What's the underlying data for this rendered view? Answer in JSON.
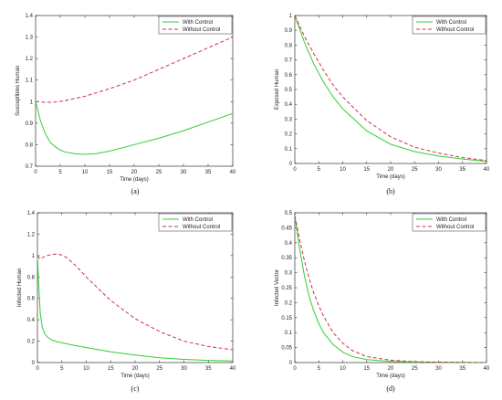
{
  "chart_data": [
    {
      "type": "line",
      "panel_label": "(a)",
      "xlabel": "Time (days)",
      "ylabel": "Susceptibles Human",
      "xlim": [
        0,
        40
      ],
      "ylim": [
        0.7,
        1.4
      ],
      "xticks": [
        "0",
        "5",
        "10",
        "15",
        "20",
        "25",
        "30",
        "35",
        "40"
      ],
      "yticks": [
        "0.7",
        "0.8",
        "0.9",
        "1",
        "1.1",
        "1.2",
        "1.3",
        "1.4"
      ],
      "legend_position": "top-right",
      "series": [
        {
          "name": "With Control",
          "color": "#33cc33",
          "dash": "solid",
          "x": [
            0,
            1,
            2,
            3,
            4,
            5,
            6,
            8,
            10,
            12,
            15,
            20,
            25,
            30,
            35,
            40
          ],
          "y": [
            1.0,
            0.91,
            0.85,
            0.81,
            0.79,
            0.775,
            0.766,
            0.758,
            0.755,
            0.758,
            0.77,
            0.8,
            0.83,
            0.865,
            0.905,
            0.945
          ]
        },
        {
          "name": "Without Control",
          "color": "#cc3344",
          "dash": "dashed",
          "x": [
            0,
            2,
            4,
            6,
            8,
            10,
            15,
            20,
            25,
            30,
            35,
            40
          ],
          "y": [
            1.0,
            0.997,
            0.998,
            1.005,
            1.015,
            1.025,
            1.06,
            1.1,
            1.15,
            1.2,
            1.25,
            1.3
          ]
        }
      ]
    },
    {
      "type": "line",
      "panel_label": "(b)",
      "xlabel": "Time (days)",
      "ylabel": "Exposed Human",
      "xlim": [
        0,
        40
      ],
      "ylim": [
        0,
        1
      ],
      "xticks": [
        "0",
        "5",
        "10",
        "15",
        "20",
        "25",
        "30",
        "35",
        "40"
      ],
      "yticks": [
        "0",
        "0.1",
        "0.2",
        "0.3",
        "0.4",
        "0.5",
        "0.6",
        "0.7",
        "0.8",
        "0.9",
        "1"
      ],
      "legend_position": "top-right",
      "series": [
        {
          "name": "With Control",
          "color": "#33cc33",
          "dash": "solid",
          "x": [
            0,
            2,
            4,
            6,
            8,
            10,
            15,
            20,
            25,
            30,
            35,
            40
          ],
          "y": [
            1.0,
            0.82,
            0.67,
            0.55,
            0.45,
            0.37,
            0.22,
            0.13,
            0.08,
            0.05,
            0.03,
            0.015
          ]
        },
        {
          "name": "Without Control",
          "color": "#cc3344",
          "dash": "dashed",
          "x": [
            0,
            2,
            4,
            6,
            8,
            10,
            15,
            20,
            25,
            30,
            35,
            40
          ],
          "y": [
            1.0,
            0.86,
            0.74,
            0.63,
            0.53,
            0.45,
            0.29,
            0.18,
            0.11,
            0.07,
            0.04,
            0.02
          ]
        }
      ]
    },
    {
      "type": "line",
      "panel_label": "(c)",
      "xlabel": "Time (days)",
      "ylabel": "Infected Human",
      "xlim": [
        0,
        40
      ],
      "ylim": [
        0,
        1.4
      ],
      "xticks": [
        "0",
        "5",
        "10",
        "15",
        "20",
        "25",
        "30",
        "35",
        "40"
      ],
      "yticks": [
        "0",
        "0.2",
        "0.4",
        "0.6",
        "0.8",
        "1",
        "1.2",
        "1.4"
      ],
      "legend_position": "top-right",
      "series": [
        {
          "name": "With Control",
          "color": "#33cc33",
          "dash": "solid",
          "x": [
            0,
            0.3,
            0.6,
            1,
            1.5,
            2,
            3,
            4,
            5,
            7,
            10,
            15,
            20,
            25,
            30,
            35,
            40
          ],
          "y": [
            1.0,
            0.7,
            0.45,
            0.33,
            0.27,
            0.24,
            0.21,
            0.195,
            0.185,
            0.165,
            0.14,
            0.1,
            0.07,
            0.045,
            0.03,
            0.02,
            0.015
          ]
        },
        {
          "name": "Without Control",
          "color": "#cc3344",
          "dash": "dashed",
          "x": [
            0,
            0.5,
            1,
            2,
            3,
            4,
            5,
            6,
            8,
            10,
            15,
            20,
            25,
            30,
            35,
            40
          ],
          "y": [
            1.0,
            0.97,
            0.98,
            1.0,
            1.01,
            1.015,
            1.005,
            0.98,
            0.9,
            0.8,
            0.58,
            0.41,
            0.29,
            0.2,
            0.15,
            0.12
          ]
        }
      ]
    },
    {
      "type": "line",
      "panel_label": "(d)",
      "xlabel": "Time (days)",
      "ylabel": "Infected Vector",
      "xlim": [
        0,
        40
      ],
      "ylim": [
        0,
        0.5
      ],
      "xticks": [
        "0",
        "5",
        "10",
        "15",
        "20",
        "25",
        "30",
        "35",
        "40"
      ],
      "yticks": [
        "0",
        "0.05",
        "0.1",
        "0.15",
        "0.2",
        "0.25",
        "0.3",
        "0.35",
        "0.4",
        "0.45",
        "0.5"
      ],
      "legend_position": "top-right",
      "series": [
        {
          "name": "With Control",
          "color": "#33cc33",
          "dash": "solid",
          "x": [
            0,
            1,
            2,
            3,
            4,
            5,
            6,
            8,
            10,
            12,
            15,
            20,
            25,
            30,
            35,
            40
          ],
          "y": [
            0.49,
            0.38,
            0.29,
            0.22,
            0.17,
            0.13,
            0.1,
            0.06,
            0.035,
            0.02,
            0.01,
            0.004,
            0.002,
            0.001,
            0.0005,
            0.0
          ]
        },
        {
          "name": "Without Control",
          "color": "#cc3344",
          "dash": "dashed",
          "x": [
            0,
            1,
            2,
            3,
            4,
            5,
            6,
            8,
            10,
            12,
            15,
            20,
            25,
            30,
            35,
            40
          ],
          "y": [
            0.49,
            0.41,
            0.34,
            0.28,
            0.23,
            0.19,
            0.155,
            0.1,
            0.065,
            0.04,
            0.02,
            0.008,
            0.003,
            0.0015,
            0.0008,
            0.0003
          ]
        }
      ]
    }
  ]
}
